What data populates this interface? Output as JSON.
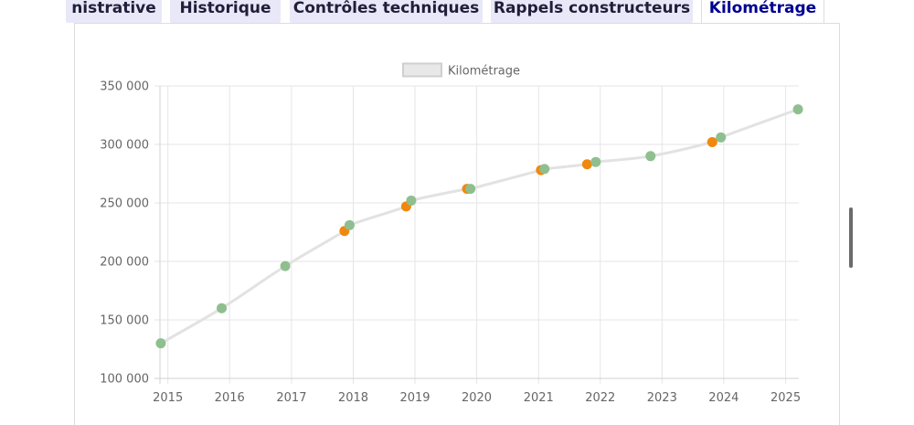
{
  "tabs": [
    {
      "label": "nistrative",
      "active": false
    },
    {
      "label": "Historique",
      "active": false
    },
    {
      "label": "Contrôles techniques",
      "active": false
    },
    {
      "label": "Rappels constructeurs",
      "active": false
    },
    {
      "label": "Kilométrage",
      "active": true
    }
  ],
  "colors": {
    "tab_bg": "#e8e8f8",
    "active_tab_text": "#000091",
    "line": "#e2e2e2",
    "point_green": "#8fbf8f",
    "point_orange": "#f0880e"
  },
  "chart_data": {
    "type": "line",
    "legend": {
      "label": "Kilométrage",
      "position": "top-center"
    },
    "x_ticks": [
      "2015",
      "2016",
      "2017",
      "2018",
      "2019",
      "2020",
      "2021",
      "2022",
      "2023",
      "2024",
      "2025"
    ],
    "y_ticks": [
      "100 000",
      "150 000",
      "200 000",
      "250 000",
      "300 000",
      "350 000"
    ],
    "xlim": [
      "2014-11-15",
      "2025-03-20"
    ],
    "ylim": [
      100000,
      350000
    ],
    "grid": true,
    "series": [
      {
        "name": "Kilométrage",
        "points": [
          {
            "date": "2014-11-20",
            "km": 130000,
            "color": "green"
          },
          {
            "date": "2015-11-15",
            "km": 160000,
            "color": "green"
          },
          {
            "date": "2016-11-25",
            "km": 196000,
            "color": "green"
          },
          {
            "date": "2017-11-10",
            "km": 226000,
            "color": "orange"
          },
          {
            "date": "2017-12-10",
            "km": 231000,
            "color": "green"
          },
          {
            "date": "2018-11-10",
            "km": 247000,
            "color": "orange"
          },
          {
            "date": "2018-12-10",
            "km": 252000,
            "color": "green"
          },
          {
            "date": "2019-11-05",
            "km": 262000,
            "color": "orange"
          },
          {
            "date": "2019-11-25",
            "km": 262000,
            "color": "green"
          },
          {
            "date": "2021-01-15",
            "km": 278000,
            "color": "orange"
          },
          {
            "date": "2021-02-05",
            "km": 279000,
            "color": "green"
          },
          {
            "date": "2021-10-15",
            "km": 283000,
            "color": "orange"
          },
          {
            "date": "2021-12-05",
            "km": 285000,
            "color": "green"
          },
          {
            "date": "2022-10-25",
            "km": 290000,
            "color": "green"
          },
          {
            "date": "2023-10-25",
            "km": 302000,
            "color": "orange"
          },
          {
            "date": "2023-12-15",
            "km": 306000,
            "color": "green"
          },
          {
            "date": "2025-03-15",
            "km": 330000,
            "color": "green"
          }
        ]
      }
    ]
  }
}
